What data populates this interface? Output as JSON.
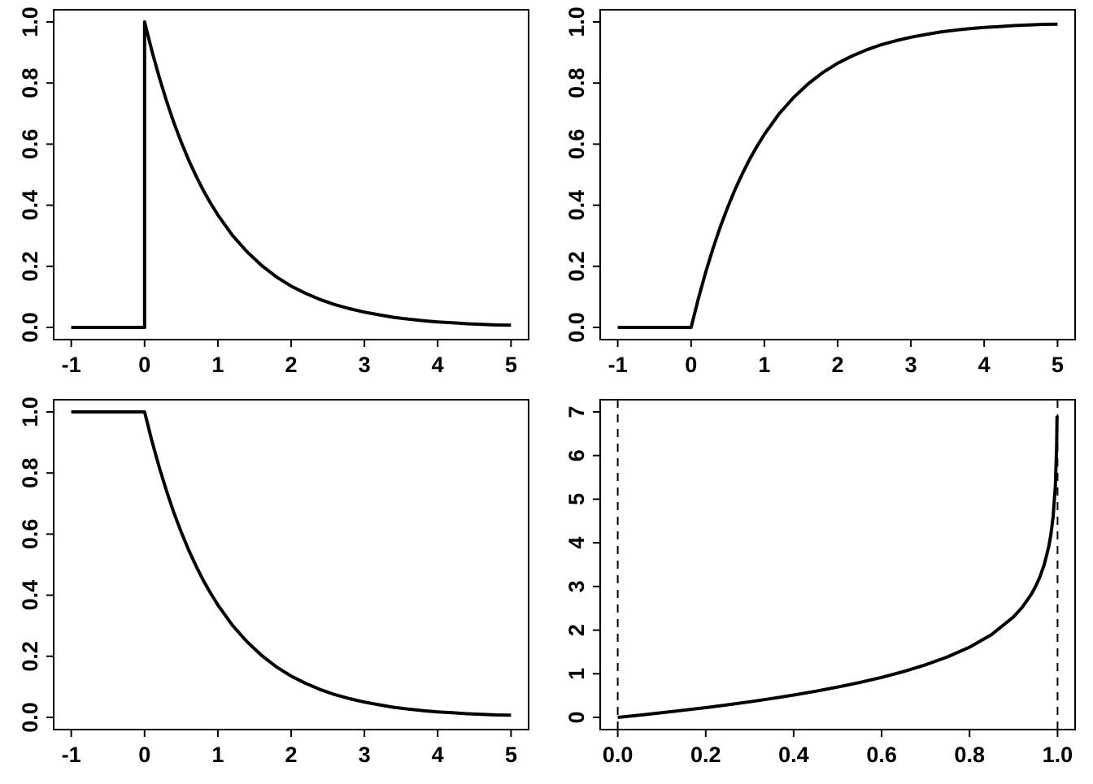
{
  "page": {
    "background_color": "#ffffff",
    "foreground_color": "#000000"
  },
  "chart_data": [
    {
      "id": "pdf",
      "type": "line",
      "title": "",
      "xlabel": "",
      "ylabel": "",
      "xlim": [
        -1,
        5
      ],
      "ylim": [
        0,
        1
      ],
      "xticks": [
        -1,
        0,
        1,
        2,
        3,
        4,
        5
      ],
      "xtick_labels": [
        "-1",
        "0",
        "1",
        "2",
        "3",
        "4",
        "5"
      ],
      "yticks": [
        0,
        0.2,
        0.4,
        0.6,
        0.8,
        1.0
      ],
      "ytick_labels": [
        "0.0",
        "0.2",
        "0.4",
        "0.6",
        "0.8",
        "1.0"
      ],
      "grid": false,
      "legend": false,
      "line": {
        "color": "#000000",
        "width": 4,
        "style": "solid"
      },
      "points": [
        [
          -1,
          0
        ],
        [
          -0.5,
          0
        ],
        [
          0,
          0
        ],
        [
          0,
          1
        ],
        [
          0.1,
          0.905
        ],
        [
          0.2,
          0.819
        ],
        [
          0.3,
          0.741
        ],
        [
          0.4,
          0.67
        ],
        [
          0.5,
          0.607
        ],
        [
          0.6,
          0.549
        ],
        [
          0.7,
          0.497
        ],
        [
          0.8,
          0.449
        ],
        [
          0.9,
          0.407
        ],
        [
          1.0,
          0.368
        ],
        [
          1.2,
          0.301
        ],
        [
          1.4,
          0.247
        ],
        [
          1.6,
          0.202
        ],
        [
          1.8,
          0.165
        ],
        [
          2.0,
          0.135
        ],
        [
          2.2,
          0.111
        ],
        [
          2.4,
          0.091
        ],
        [
          2.6,
          0.074
        ],
        [
          2.8,
          0.061
        ],
        [
          3.0,
          0.05
        ],
        [
          3.2,
          0.041
        ],
        [
          3.4,
          0.033
        ],
        [
          3.6,
          0.027
        ],
        [
          3.8,
          0.022
        ],
        [
          4.0,
          0.018
        ],
        [
          4.2,
          0.015
        ],
        [
          4.4,
          0.012
        ],
        [
          4.6,
          0.01
        ],
        [
          4.8,
          0.008
        ],
        [
          5.0,
          0.007
        ]
      ],
      "vlines": []
    },
    {
      "id": "cdf",
      "type": "line",
      "title": "",
      "xlabel": "",
      "ylabel": "",
      "xlim": [
        -1,
        5
      ],
      "ylim": [
        0,
        1
      ],
      "xticks": [
        -1,
        0,
        1,
        2,
        3,
        4,
        5
      ],
      "xtick_labels": [
        "-1",
        "0",
        "1",
        "2",
        "3",
        "4",
        "5"
      ],
      "yticks": [
        0,
        0.2,
        0.4,
        0.6,
        0.8,
        1.0
      ],
      "ytick_labels": [
        "0.0",
        "0.2",
        "0.4",
        "0.6",
        "0.8",
        "1.0"
      ],
      "grid": false,
      "legend": false,
      "line": {
        "color": "#000000",
        "width": 4,
        "style": "solid"
      },
      "points": [
        [
          -1,
          0
        ],
        [
          -0.5,
          0
        ],
        [
          0,
          0
        ],
        [
          0.1,
          0.095
        ],
        [
          0.2,
          0.181
        ],
        [
          0.3,
          0.259
        ],
        [
          0.4,
          0.33
        ],
        [
          0.5,
          0.393
        ],
        [
          0.6,
          0.451
        ],
        [
          0.7,
          0.503
        ],
        [
          0.8,
          0.551
        ],
        [
          0.9,
          0.593
        ],
        [
          1.0,
          0.632
        ],
        [
          1.2,
          0.699
        ],
        [
          1.4,
          0.753
        ],
        [
          1.6,
          0.798
        ],
        [
          1.8,
          0.835
        ],
        [
          2.0,
          0.865
        ],
        [
          2.2,
          0.889
        ],
        [
          2.4,
          0.909
        ],
        [
          2.6,
          0.926
        ],
        [
          2.8,
          0.939
        ],
        [
          3.0,
          0.95
        ],
        [
          3.2,
          0.959
        ],
        [
          3.4,
          0.967
        ],
        [
          3.6,
          0.973
        ],
        [
          3.8,
          0.978
        ],
        [
          4.0,
          0.982
        ],
        [
          4.2,
          0.985
        ],
        [
          4.4,
          0.988
        ],
        [
          4.6,
          0.99
        ],
        [
          4.8,
          0.992
        ],
        [
          5.0,
          0.993
        ]
      ],
      "vlines": []
    },
    {
      "id": "survival",
      "type": "line",
      "title": "",
      "xlabel": "",
      "ylabel": "",
      "xlim": [
        -1,
        5
      ],
      "ylim": [
        0,
        1
      ],
      "xticks": [
        -1,
        0,
        1,
        2,
        3,
        4,
        5
      ],
      "xtick_labels": [
        "-1",
        "0",
        "1",
        "2",
        "3",
        "4",
        "5"
      ],
      "yticks": [
        0,
        0.2,
        0.4,
        0.6,
        0.8,
        1.0
      ],
      "ytick_labels": [
        "0.0",
        "0.2",
        "0.4",
        "0.6",
        "0.8",
        "1.0"
      ],
      "grid": false,
      "legend": false,
      "line": {
        "color": "#000000",
        "width": 4,
        "style": "solid"
      },
      "points": [
        [
          -1,
          1
        ],
        [
          -0.5,
          1
        ],
        [
          0,
          1
        ],
        [
          0.1,
          0.905
        ],
        [
          0.2,
          0.819
        ],
        [
          0.3,
          0.741
        ],
        [
          0.4,
          0.67
        ],
        [
          0.5,
          0.607
        ],
        [
          0.6,
          0.549
        ],
        [
          0.7,
          0.497
        ],
        [
          0.8,
          0.449
        ],
        [
          0.9,
          0.407
        ],
        [
          1.0,
          0.368
        ],
        [
          1.2,
          0.301
        ],
        [
          1.4,
          0.247
        ],
        [
          1.6,
          0.202
        ],
        [
          1.8,
          0.165
        ],
        [
          2.0,
          0.135
        ],
        [
          2.2,
          0.111
        ],
        [
          2.4,
          0.091
        ],
        [
          2.6,
          0.074
        ],
        [
          2.8,
          0.061
        ],
        [
          3.0,
          0.05
        ],
        [
          3.2,
          0.041
        ],
        [
          3.4,
          0.033
        ],
        [
          3.6,
          0.027
        ],
        [
          3.8,
          0.022
        ],
        [
          4.0,
          0.018
        ],
        [
          4.2,
          0.015
        ],
        [
          4.4,
          0.012
        ],
        [
          4.6,
          0.01
        ],
        [
          4.8,
          0.008
        ],
        [
          5.0,
          0.007
        ]
      ],
      "vlines": []
    },
    {
      "id": "quantile",
      "type": "line",
      "title": "",
      "xlabel": "",
      "ylabel": "",
      "xlim": [
        0,
        1
      ],
      "ylim": [
        0,
        7
      ],
      "xticks": [
        0,
        0.2,
        0.4,
        0.6,
        0.8,
        1.0
      ],
      "xtick_labels": [
        "0.0",
        "0.2",
        "0.4",
        "0.6",
        "0.8",
        "1.0"
      ],
      "yticks": [
        0,
        1,
        2,
        3,
        4,
        5,
        6,
        7
      ],
      "ytick_labels": [
        "0",
        "1",
        "2",
        "3",
        "4",
        "5",
        "6",
        "7"
      ],
      "grid": false,
      "legend": false,
      "line": {
        "color": "#000000",
        "width": 4,
        "style": "solid"
      },
      "points": [
        [
          0,
          0
        ],
        [
          0.05,
          0.051
        ],
        [
          0.1,
          0.105
        ],
        [
          0.15,
          0.163
        ],
        [
          0.2,
          0.223
        ],
        [
          0.25,
          0.288
        ],
        [
          0.3,
          0.357
        ],
        [
          0.35,
          0.431
        ],
        [
          0.4,
          0.511
        ],
        [
          0.45,
          0.598
        ],
        [
          0.5,
          0.693
        ],
        [
          0.55,
          0.799
        ],
        [
          0.6,
          0.916
        ],
        [
          0.65,
          1.05
        ],
        [
          0.7,
          1.204
        ],
        [
          0.75,
          1.386
        ],
        [
          0.8,
          1.609
        ],
        [
          0.85,
          1.897
        ],
        [
          0.9,
          2.303
        ],
        [
          0.92,
          2.526
        ],
        [
          0.94,
          2.813
        ],
        [
          0.95,
          2.996
        ],
        [
          0.96,
          3.219
        ],
        [
          0.97,
          3.507
        ],
        [
          0.98,
          3.912
        ],
        [
          0.985,
          4.2
        ],
        [
          0.99,
          4.605
        ],
        [
          0.995,
          5.298
        ],
        [
          0.998,
          6.215
        ],
        [
          0.999,
          6.908
        ]
      ],
      "vlines": [
        {
          "x": 0,
          "style": "dashed",
          "color": "#000000",
          "width": 2
        },
        {
          "x": 1,
          "style": "dashed",
          "color": "#000000",
          "width": 2
        }
      ]
    }
  ]
}
